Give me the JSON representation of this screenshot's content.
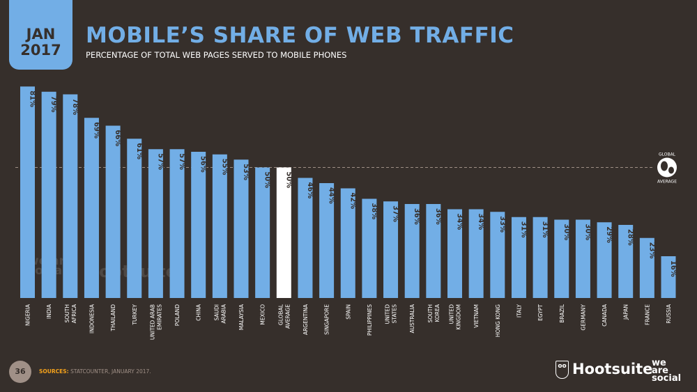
{
  "header": {
    "month": "JAN",
    "year": "2017",
    "title": "MOBILE’S SHARE OF WEB TRAFFIC",
    "subtitle": "PERCENTAGE OF TOTAL WEB PAGES SERVED TO MOBILE PHONES"
  },
  "footer": {
    "page_number": "36",
    "sources_label": "SOURCES:",
    "sources_text": "STATCOUNTER, JANUARY 2017.",
    "brand1": "Hootsuite",
    "brand2_lines": [
      "we",
      "are",
      "social"
    ]
  },
  "watermark": {
    "brand1": "Hootsuite",
    "brand2": "we are social"
  },
  "colors": {
    "bar": "#72aee6",
    "highlight": "#ffffff",
    "background": "#362f2b",
    "accent": "#f5a21b"
  },
  "chart_data": {
    "type": "bar",
    "categories": [
      "NIGERIA",
      "INDIA",
      "SOUTH AFRICA",
      "INDONESIA",
      "THAILAND",
      "TURKEY",
      "UNITED ARAB EMIRATES",
      "POLAND",
      "CHINA",
      "SAUDI ARABIA",
      "MALAYSIA",
      "MEXICO",
      "GLOBAL AVERAGE",
      "ARGENTINA",
      "SINGAPORE",
      "SPAIN",
      "PHILIPPINES",
      "UNITED STATES",
      "AUSTRALIA",
      "SOUTH KOREA",
      "UNITED KINGDOM",
      "VIETNAM",
      "HONG KONG",
      "ITALY",
      "EGYPT",
      "BRAZIL",
      "GERMANY",
      "CANADA",
      "JAPAN",
      "FRANCE",
      "RUSSIA"
    ],
    "category_lines": [
      [
        "NIGERIA"
      ],
      [
        "INDIA"
      ],
      [
        "SOUTH",
        "AFRICA"
      ],
      [
        "INDONESIA"
      ],
      [
        "THAILAND"
      ],
      [
        "TURKEY"
      ],
      [
        "UNITED ARAB",
        "EMIRATES"
      ],
      [
        "POLAND"
      ],
      [
        "CHINA"
      ],
      [
        "SAUDI",
        "ARABIA"
      ],
      [
        "MALAYSIA"
      ],
      [
        "MEXICO"
      ],
      [
        "GLOBAL",
        "AVERAGE"
      ],
      [
        "ARGENTINA"
      ],
      [
        "SINGAPORE"
      ],
      [
        "SPAIN"
      ],
      [
        "PHILIPPINES"
      ],
      [
        "UNITED",
        "STATES"
      ],
      [
        "AUSTRALIA"
      ],
      [
        "SOUTH",
        "KOREA"
      ],
      [
        "UNITED",
        "KINGDOM"
      ],
      [
        "VIETNAM"
      ],
      [
        "HONG KONG"
      ],
      [
        "ITALY"
      ],
      [
        "EGYPT"
      ],
      [
        "BRAZIL"
      ],
      [
        "GERMANY"
      ],
      [
        "CANADA"
      ],
      [
        "JAPAN"
      ],
      [
        "FRANCE"
      ],
      [
        "RUSSIA"
      ]
    ],
    "values": [
      81,
      79,
      78,
      69,
      66,
      61,
      57,
      57,
      56,
      55,
      53,
      50,
      50,
      46,
      44,
      42,
      38,
      37,
      36,
      36,
      34,
      34,
      33,
      31,
      31,
      30,
      30,
      29,
      28,
      23,
      16
    ],
    "value_labels": [
      "81%",
      "79%",
      "78%",
      "69%",
      "66%",
      "61%",
      "57%",
      "57%",
      "56%",
      "55%",
      "53%",
      "50%",
      "50%",
      "46%",
      "44%",
      "42%",
      "38%",
      "37%",
      "36%",
      "36%",
      "34%",
      "34%",
      "33%",
      "31%",
      "31%",
      "30%",
      "30%",
      "29%",
      "28%",
      "23%",
      "16%"
    ],
    "highlight_category": "GLOBAL AVERAGE",
    "reference_line": {
      "value": 50,
      "label_lines": [
        "GLOBAL",
        "AVERAGE"
      ]
    },
    "ylim": [
      0,
      100
    ],
    "grid": false,
    "legend": "none"
  }
}
